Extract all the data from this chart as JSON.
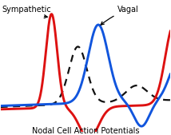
{
  "bottom_label": "Nodal Cell Action Potentials",
  "sympathetic_label": "Sympathetic",
  "vagal_label": "Vagal",
  "red_color": "#dd1111",
  "blue_color": "#1155dd",
  "dashed_color": "#111111",
  "background_color": "#ffffff",
  "figsize": [
    2.14,
    1.69
  ],
  "dpi": 100,
  "xlim": [
    0,
    1
  ],
  "ylim": [
    -0.15,
    1.0
  ]
}
